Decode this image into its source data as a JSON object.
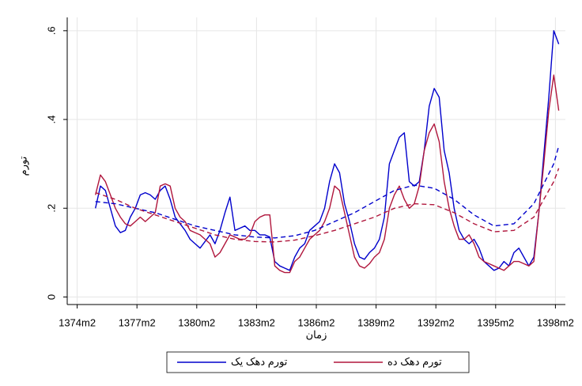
{
  "chart_data": {
    "type": "line",
    "y_label": "تورم",
    "x_label": "زمان",
    "x": [
      "1375m1",
      "1375m4",
      "1375m7",
      "1375m10",
      "1376m1",
      "1376m4",
      "1376m7",
      "1376m10",
      "1377m1",
      "1377m4",
      "1377m7",
      "1377m10",
      "1378m1",
      "1378m4",
      "1378m7",
      "1378m10",
      "1379m1",
      "1379m4",
      "1379m7",
      "1379m10",
      "1380m1",
      "1380m4",
      "1380m7",
      "1380m10",
      "1381m1",
      "1381m4",
      "1381m7",
      "1381m10",
      "1382m1",
      "1382m4",
      "1382m7",
      "1382m10",
      "1383m1",
      "1383m4",
      "1383m7",
      "1383m10",
      "1384m1",
      "1384m4",
      "1384m7",
      "1384m10",
      "1385m1",
      "1385m4",
      "1385m7",
      "1385m10",
      "1386m1",
      "1386m4",
      "1386m7",
      "1386m10",
      "1387m1",
      "1387m4",
      "1387m7",
      "1387m10",
      "1388m1",
      "1388m4",
      "1388m7",
      "1388m10",
      "1389m1",
      "1389m4",
      "1389m7",
      "1389m10",
      "1390m1",
      "1390m4",
      "1390m7",
      "1390m10",
      "1391m1",
      "1391m4",
      "1391m7",
      "1391m10",
      "1392m1",
      "1392m4",
      "1392m7",
      "1392m10",
      "1393m1",
      "1393m4",
      "1393m7",
      "1393m10",
      "1394m1",
      "1394m4",
      "1394m7",
      "1394m10",
      "1395m1",
      "1395m4",
      "1395m7",
      "1395m10",
      "1396m1",
      "1396m4",
      "1396m7",
      "1396m10",
      "1397m1",
      "1397m4",
      "1397m7",
      "1397m10",
      "1398m1",
      "1398m4"
    ],
    "series": [
      {
        "name": "تورم دهک یک",
        "color": "#0000cc",
        "dash": false,
        "values": [
          0.2,
          0.25,
          0.24,
          0.2,
          0.16,
          0.145,
          0.15,
          0.18,
          0.2,
          0.23,
          0.235,
          0.23,
          0.22,
          0.24,
          0.25,
          0.22,
          0.18,
          0.165,
          0.15,
          0.13,
          0.12,
          0.11,
          0.125,
          0.14,
          0.12,
          0.15,
          0.19,
          0.225,
          0.15,
          0.155,
          0.16,
          0.15,
          0.15,
          0.14,
          0.14,
          0.135,
          0.08,
          0.07,
          0.065,
          0.06,
          0.09,
          0.11,
          0.12,
          0.15,
          0.16,
          0.17,
          0.2,
          0.26,
          0.3,
          0.28,
          0.21,
          0.17,
          0.12,
          0.09,
          0.085,
          0.1,
          0.11,
          0.13,
          0.18,
          0.3,
          0.33,
          0.36,
          0.37,
          0.26,
          0.25,
          0.26,
          0.33,
          0.43,
          0.47,
          0.45,
          0.33,
          0.28,
          0.2,
          0.15,
          0.13,
          0.12,
          0.13,
          0.11,
          0.08,
          0.07,
          0.06,
          0.065,
          0.08,
          0.07,
          0.1,
          0.11,
          0.09,
          0.07,
          0.09,
          0.19,
          0.32,
          0.45,
          0.6,
          0.57
        ]
      },
      {
        "name": "تورم دهک ده",
        "color": "#b0163c",
        "dash": false,
        "values": [
          0.23,
          0.275,
          0.26,
          0.23,
          0.2,
          0.18,
          0.165,
          0.16,
          0.17,
          0.18,
          0.17,
          0.18,
          0.19,
          0.25,
          0.255,
          0.25,
          0.2,
          0.18,
          0.17,
          0.15,
          0.145,
          0.14,
          0.13,
          0.12,
          0.09,
          0.1,
          0.12,
          0.14,
          0.135,
          0.13,
          0.13,
          0.14,
          0.17,
          0.18,
          0.185,
          0.185,
          0.07,
          0.06,
          0.055,
          0.055,
          0.08,
          0.09,
          0.11,
          0.13,
          0.14,
          0.15,
          0.17,
          0.2,
          0.25,
          0.24,
          0.19,
          0.14,
          0.09,
          0.07,
          0.065,
          0.075,
          0.09,
          0.1,
          0.13,
          0.2,
          0.23,
          0.25,
          0.22,
          0.2,
          0.21,
          0.25,
          0.33,
          0.37,
          0.39,
          0.35,
          0.26,
          0.2,
          0.16,
          0.13,
          0.13,
          0.14,
          0.12,
          0.09,
          0.08,
          0.075,
          0.07,
          0.065,
          0.06,
          0.07,
          0.08,
          0.08,
          0.075,
          0.07,
          0.08,
          0.19,
          0.3,
          0.42,
          0.5,
          0.42
        ]
      },
      {
        "color": "#0000cc",
        "dash": true,
        "x": [
          "1375m1",
          "1376m1",
          "1377m1",
          "1378m1",
          "1379m1",
          "1380m1",
          "1381m1",
          "1382m1",
          "1383m1",
          "1384m1",
          "1385m1",
          "1386m1",
          "1387m1",
          "1388m1",
          "1389m1",
          "1390m1",
          "1391m1",
          "1392m1",
          "1393m1",
          "1394m1",
          "1395m1",
          "1396m1",
          "1397m1",
          "1398m1",
          "1398m4"
        ],
        "values": [
          0.215,
          0.21,
          0.2,
          0.19,
          0.175,
          0.16,
          0.15,
          0.14,
          0.135,
          0.133,
          0.138,
          0.15,
          0.17,
          0.19,
          0.215,
          0.24,
          0.252,
          0.245,
          0.22,
          0.185,
          0.16,
          0.165,
          0.21,
          0.3,
          0.34
        ]
      },
      {
        "color": "#b0163c",
        "dash": true,
        "x": [
          "1375m1",
          "1376m1",
          "1377m1",
          "1378m1",
          "1379m1",
          "1380m1",
          "1381m1",
          "1382m1",
          "1383m1",
          "1384m1",
          "1385m1",
          "1386m1",
          "1387m1",
          "1388m1",
          "1389m1",
          "1390m1",
          "1391m1",
          "1392m1",
          "1393m1",
          "1394m1",
          "1395m1",
          "1396m1",
          "1397m1",
          "1398m1",
          "1398m4"
        ],
        "values": [
          0.235,
          0.22,
          0.2,
          0.185,
          0.17,
          0.155,
          0.14,
          0.13,
          0.125,
          0.124,
          0.128,
          0.138,
          0.15,
          0.165,
          0.18,
          0.2,
          0.21,
          0.208,
          0.19,
          0.165,
          0.147,
          0.15,
          0.18,
          0.26,
          0.29
        ]
      }
    ],
    "xlim": [
      "1373m8",
      "1398m8"
    ],
    "xticks": [
      "1374m2",
      "1377m2",
      "1380m2",
      "1383m2",
      "1386m2",
      "1389m2",
      "1392m2",
      "1395m2",
      "1398m2"
    ],
    "ylim": [
      -0.017,
      0.63
    ],
    "yticks": [
      0,
      {
        "value": 0.2,
        "label": ".2"
      },
      {
        "value": 0.4,
        "label": ".4"
      },
      {
        "value": 0.6,
        "label": ".6"
      }
    ],
    "grid": true
  }
}
